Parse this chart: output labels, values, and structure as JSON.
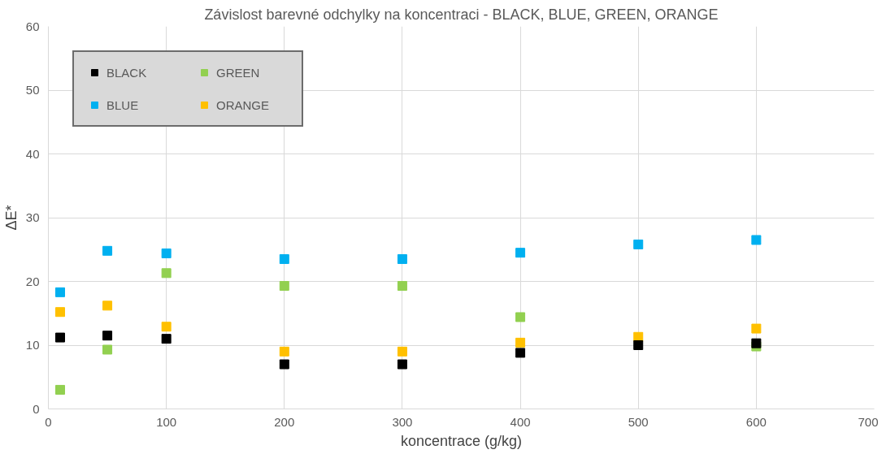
{
  "chart_data": {
    "type": "scatter",
    "title": "Závislost barevné odchylky na koncentraci - BLACK, BLUE, GREEN, ORANGE",
    "xlabel": "koncentrace (g/kg)",
    "ylabel": "ΔE*",
    "x": [
      10,
      50,
      100,
      200,
      300,
      400,
      500,
      600
    ],
    "series": [
      {
        "name": "BLACK",
        "color": "#000000",
        "values": [
          11.2,
          11.5,
          11.0,
          7.0,
          7.0,
          8.8,
          10.0,
          10.3
        ]
      },
      {
        "name": "BLUE",
        "color": "#00b0f0",
        "values": [
          18.3,
          24.8,
          24.4,
          23.5,
          23.5,
          24.5,
          25.8,
          26.5
        ]
      },
      {
        "name": "GREEN",
        "color": "#92d050",
        "values": [
          3.0,
          9.3,
          21.3,
          19.3,
          19.3,
          14.4,
          null,
          9.8
        ]
      },
      {
        "name": "ORANGE",
        "color": "#ffc000",
        "values": [
          15.2,
          16.2,
          12.9,
          9.0,
          9.0,
          10.4,
          11.3,
          12.6
        ]
      }
    ],
    "xlim": [
      0,
      700
    ],
    "xticks": [
      0,
      100,
      200,
      300,
      400,
      500,
      600,
      700
    ],
    "ylim": [
      0,
      60
    ],
    "yticks": [
      0,
      10,
      20,
      30,
      40,
      50,
      60
    ],
    "grid": true,
    "legend": "top left",
    "marker": "square"
  }
}
